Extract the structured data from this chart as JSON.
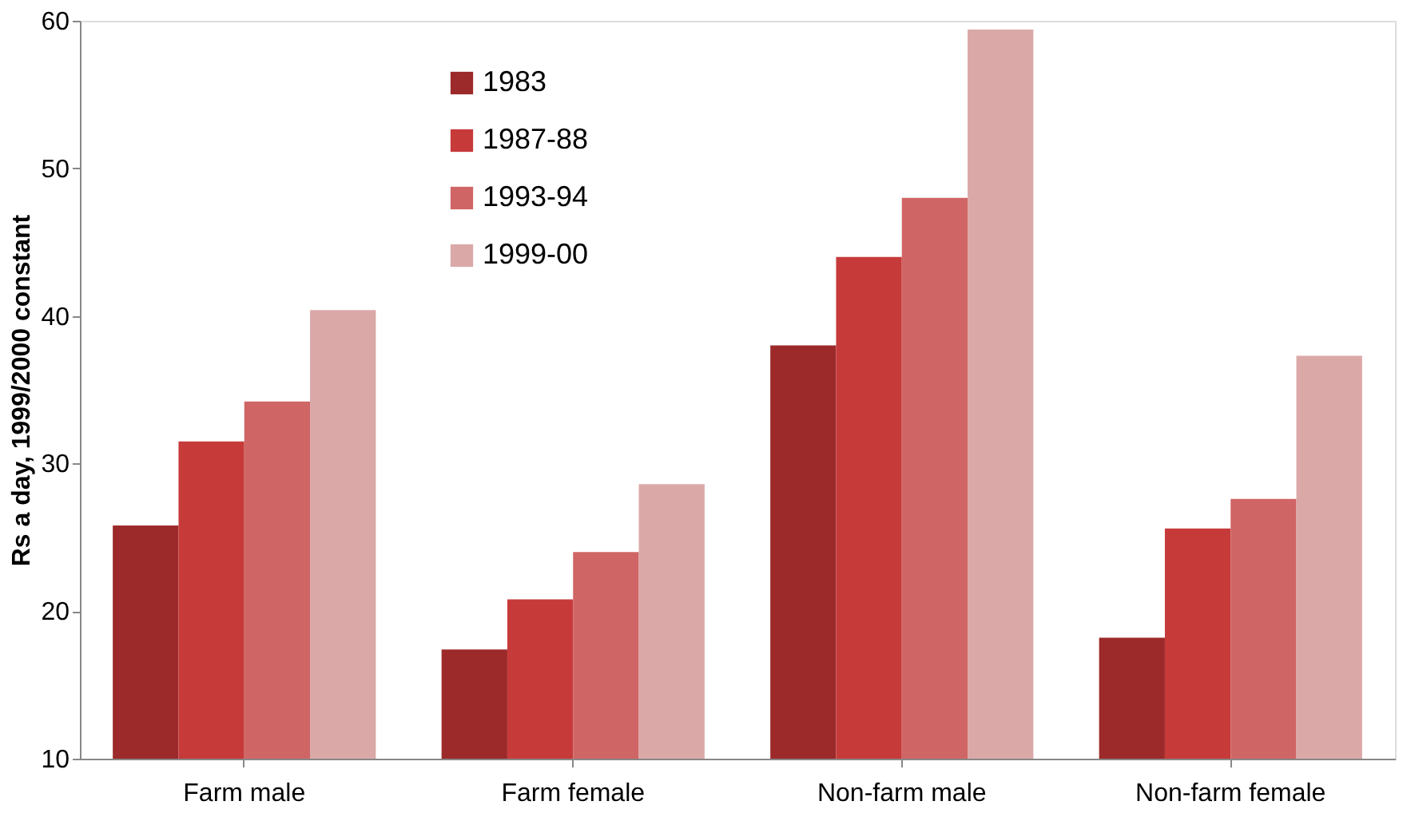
{
  "chart_data": {
    "type": "bar",
    "ylabel": "Rs a day, 1999/2000 constant",
    "categories": [
      "Farm male",
      "Farm female",
      "Non-farm male",
      "Non-farm female"
    ],
    "series": [
      {
        "name": "1983",
        "color": "#9c2a2a",
        "values": [
          25.8,
          17.4,
          38.0,
          18.2
        ]
      },
      {
        "name": "1987-88",
        "color": "#c73a3a",
        "values": [
          31.5,
          20.8,
          44.0,
          25.6
        ]
      },
      {
        "name": "1993-94",
        "color": "#d06565",
        "values": [
          34.2,
          24.0,
          48.0,
          27.6
        ]
      },
      {
        "name": "1999-00",
        "color": "#dba8a8",
        "values": [
          40.4,
          28.6,
          59.4,
          37.3
        ]
      }
    ],
    "ylim": [
      10,
      60
    ],
    "yticks": [
      10,
      20,
      30,
      40,
      50,
      60
    ],
    "grid": false,
    "legend": "top"
  }
}
